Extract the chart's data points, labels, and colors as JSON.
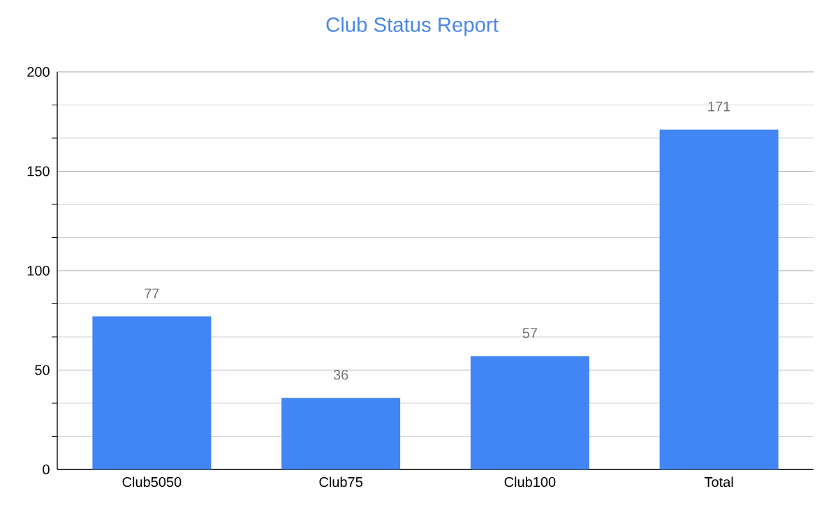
{
  "chart_data": {
    "type": "bar",
    "title": "Club Status Report",
    "categories": [
      "Club5050",
      "Club75",
      "Club100",
      "Total"
    ],
    "values": [
      77,
      36,
      57,
      171
    ],
    "color": "#4285f4",
    "ylim": [
      0,
      200
    ],
    "yticks": [
      0,
      50,
      100,
      150,
      200
    ],
    "grid": "y",
    "data_labels": true
  }
}
